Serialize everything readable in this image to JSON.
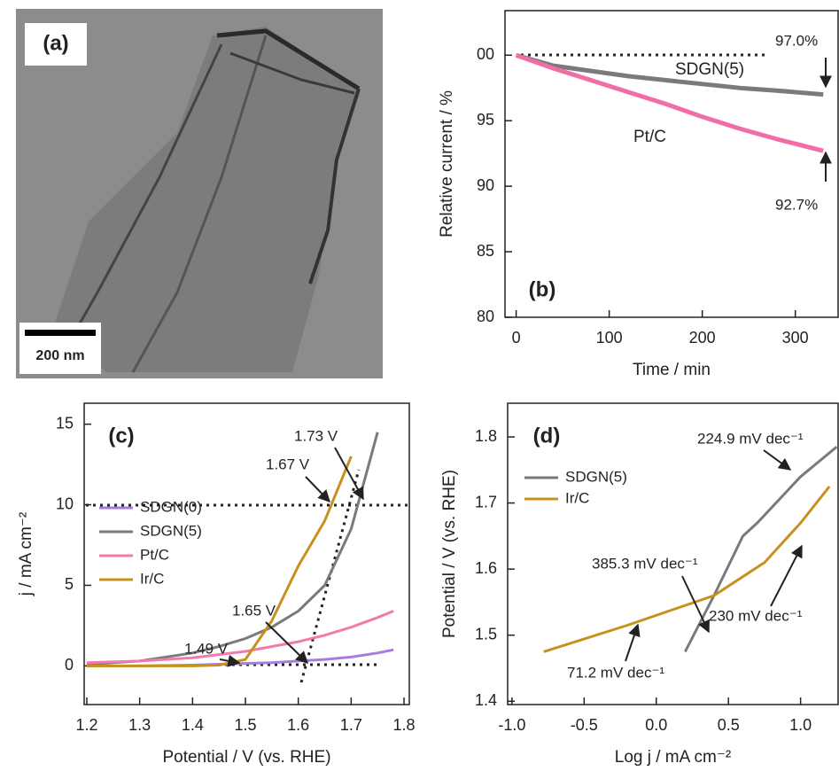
{
  "chart_data": [
    {
      "type": "image",
      "label": "(a)",
      "scale_bar": "200 nm"
    },
    {
      "type": "line",
      "label": "(b)",
      "xlabel": "Time / min",
      "ylabel": "Relative current / %",
      "x": [
        0,
        40,
        80,
        120,
        160,
        200,
        240,
        280,
        330
      ],
      "series": [
        {
          "name": "SDGN(5)",
          "color": "#7a7a7a",
          "values": [
            100,
            99.2,
            98.8,
            98.4,
            98.1,
            97.8,
            97.5,
            97.3,
            97.0
          ]
        },
        {
          "name": "Pt/C",
          "color": "#f06ea5",
          "values": [
            100,
            99.0,
            98.1,
            97.2,
            96.3,
            95.3,
            94.4,
            93.6,
            92.7
          ]
        }
      ],
      "annotations": [
        "97.0%",
        "92.7%"
      ],
      "xlim": [
        -12,
        346
      ],
      "ylim": [
        80,
        103.4
      ],
      "xticks": [
        0,
        100,
        200,
        300
      ],
      "yticks": [
        80,
        85,
        90,
        95,
        {
          "value": 100,
          "label": "00"
        }
      ]
    },
    {
      "type": "line",
      "label": "(c)",
      "xlabel": "Potential / V (vs. RHE)",
      "ylabel": "j / mA cm⁻²",
      "x": [
        1.2,
        1.3,
        1.4,
        1.45,
        1.5,
        1.55,
        1.6,
        1.65,
        1.7,
        1.75,
        1.78
      ],
      "series": [
        {
          "name": "SDGN(0)",
          "color": "#a97be0",
          "values": [
            0,
            0,
            0.05,
            0.1,
            0.15,
            0.2,
            0.3,
            0.4,
            0.55,
            0.8,
            1.0
          ]
        },
        {
          "name": "SDGN(5)",
          "color": "#7a7a7a",
          "values": [
            0.1,
            0.3,
            0.8,
            1.2,
            1.7,
            2.4,
            3.4,
            5.0,
            8.5,
            14.5,
            null
          ]
        },
        {
          "name": "Pt/C",
          "color": "#f27aad",
          "values": [
            0.2,
            0.3,
            0.5,
            0.7,
            0.9,
            1.2,
            1.5,
            1.9,
            2.4,
            3.0,
            3.4
          ]
        },
        {
          "name": "Ir/C",
          "color": "#c8901c",
          "values": [
            0,
            0,
            0,
            0.05,
            0.4,
            2.8,
            6.2,
            9.0,
            13.0,
            null,
            null
          ]
        }
      ],
      "annotations": [
        "1.73 V",
        "1.67 V",
        "1.65 V",
        "1.49 V"
      ],
      "xlim": [
        1.195,
        1.81
      ],
      "ylim": [
        -2.4,
        16.3
      ],
      "xticks": [
        1.2,
        1.3,
        1.4,
        1.5,
        1.6,
        1.7,
        1.8
      ],
      "yticks": [
        0,
        5,
        10,
        15
      ]
    },
    {
      "type": "line",
      "label": "(d)",
      "xlabel": "Log j / mA cm⁻²",
      "ylabel": "Potential / V (vs. RHE)",
      "series": [
        {
          "name": "SDGN(5)",
          "color": "#7a7a7a",
          "x": [
            0.2,
            0.4,
            0.6,
            0.7,
            1.0,
            1.25
          ],
          "values": [
            1.475,
            1.56,
            1.65,
            1.67,
            1.74,
            1.785
          ]
        },
        {
          "name": "Ir/C",
          "color": "#c8901c",
          "x": [
            -0.78,
            -0.2,
            0.4,
            0.75,
            1.0,
            1.2
          ],
          "values": [
            1.475,
            1.515,
            1.56,
            1.61,
            1.67,
            1.725
          ]
        }
      ],
      "annotations": [
        "224.9 mV dec⁻¹",
        "385.3 mV dec⁻¹",
        "230 mV dec⁻¹",
        "71.2 mV dec⁻¹"
      ],
      "xlim": [
        -1.03,
        1.26
      ],
      "ylim": [
        1.395,
        1.851
      ],
      "xticks": [
        {
          "value": -1,
          "label": "-1.0"
        },
        -0.5,
        {
          "value": 0,
          "label": "0.0"
        },
        0.5,
        {
          "value": 1,
          "label": "1.0"
        }
      ],
      "yticks": [
        1.4,
        1.5,
        1.6,
        1.7,
        1.8
      ]
    }
  ]
}
